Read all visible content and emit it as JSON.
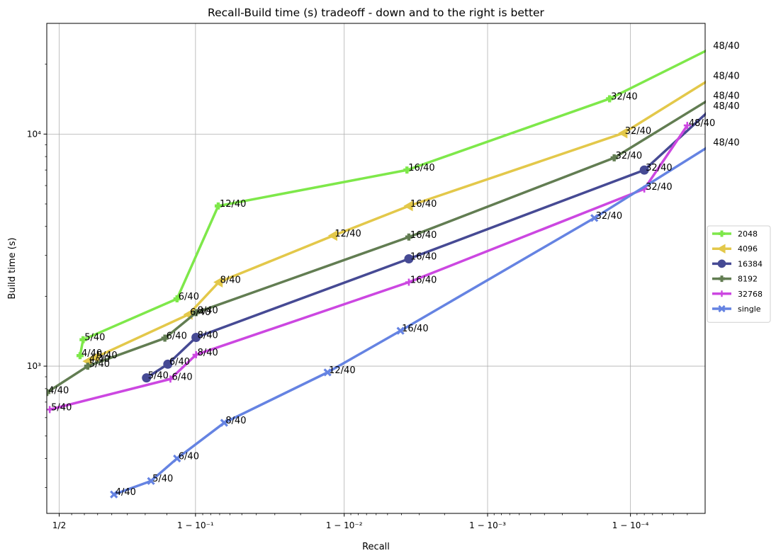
{
  "chart_data": {
    "type": "line",
    "title": "Recall-Build time (s) tradeoff - down and to the right is better",
    "xlabel": "Recall",
    "ylabel": "Build time (s)",
    "x_scale": "logit",
    "y_scale": "log",
    "xlim": [
      0.45,
      0.99997
    ],
    "ylim": [
      232,
      30000
    ],
    "grid": true,
    "legend_position": "center-right",
    "x_ticks": [
      {
        "value": 0.5,
        "label": "1/2"
      },
      {
        "value": 0.9,
        "label": "1 − 10⁻¹"
      },
      {
        "value": 0.99,
        "label": "1 − 10⁻²"
      },
      {
        "value": 0.999,
        "label": "1 − 10⁻³"
      },
      {
        "value": 0.9999,
        "label": "1 − 10⁻⁴"
      }
    ],
    "y_ticks": [
      {
        "value": 1000,
        "label": "10³"
      },
      {
        "value": 10000,
        "label": "10⁴"
      }
    ],
    "series": [
      {
        "name": "2048",
        "color": "#7ee84a",
        "marker": "plus-filled",
        "points": [
          {
            "x": 0.5832,
            "y": 1110,
            "label": "4/40"
          },
          {
            "x": 0.5951,
            "y": 1300,
            "label": "5/40"
          },
          {
            "x": 0.8698,
            "y": 1950,
            "label": "6/40"
          },
          {
            "x": 0.9285,
            "y": 4900,
            "label": "12/40"
          },
          {
            "x": 0.99634,
            "y": 7000,
            "label": "16/40"
          },
          {
            "x": 0.99986,
            "y": 14200,
            "label": "32/40"
          },
          {
            "x": 0.999973,
            "y": 23500,
            "label": "48/40"
          }
        ]
      },
      {
        "name": "4096",
        "color": "#e3c84a",
        "marker": "triangle-left",
        "points": [
          {
            "x": 0.613,
            "y": 1050,
            "label": "4/40"
          },
          {
            "x": 0.6414,
            "y": 1090,
            "label": "5/40"
          },
          {
            "x": 0.8895,
            "y": 1670,
            "label": "6/40"
          },
          {
            "x": 0.929,
            "y": 2300,
            "label": "8/40"
          },
          {
            "x": 0.9881,
            "y": 3650,
            "label": "12/40"
          },
          {
            "x": 0.99645,
            "y": 4900,
            "label": "16/40"
          },
          {
            "x": 0.999888,
            "y": 10100,
            "label": "32/40"
          },
          {
            "x": 0.999973,
            "y": 17400,
            "label": "48/40"
          }
        ]
      },
      {
        "name": "16384",
        "color": "#464a94",
        "marker": "circle",
        "points": [
          {
            "x": 0.8034,
            "y": 890,
            "label": "5/40"
          },
          {
            "x": 0.8521,
            "y": 1020,
            "label": "6/40"
          },
          {
            "x": 0.9008,
            "y": 1330,
            "label": "8/40"
          },
          {
            "x": 0.99645,
            "y": 2900,
            "label": "16/40"
          },
          {
            "x": 0.99992,
            "y": 7000,
            "label": "32/40"
          },
          {
            "x": 0.999973,
            "y": 12900,
            "label": "48/40"
          }
        ]
      },
      {
        "name": "8192",
        "color": "#627d52",
        "marker": "plus-filled",
        "points": [
          {
            "x": 0.4503,
            "y": 770,
            "label": "4/40"
          },
          {
            "x": 0.613,
            "y": 1000,
            "label": "5/40"
          },
          {
            "x": 0.846,
            "y": 1320,
            "label": "6/40"
          },
          {
            "x": 0.9008,
            "y": 1700,
            "label": "8/40"
          },
          {
            "x": 0.99645,
            "y": 3600,
            "label": "16/40"
          },
          {
            "x": 0.99987,
            "y": 7900,
            "label": "32/40"
          },
          {
            "x": 0.999973,
            "y": 14300,
            "label": "48/40"
          }
        ]
      },
      {
        "name": "32768",
        "color": "#cc47e1",
        "marker": "plus",
        "points": [
          {
            "x": 0.4618,
            "y": 650,
            "label": "5/40"
          },
          {
            "x": 0.8573,
            "y": 880,
            "label": "6/40"
          },
          {
            "x": 0.9008,
            "y": 1120,
            "label": "8/40"
          },
          {
            "x": 0.99645,
            "y": 2300,
            "label": "16/40"
          },
          {
            "x": 0.99992,
            "y": 5800,
            "label": "32/40"
          },
          {
            "x": 0.99996,
            "y": 10900,
            "label": "48/40"
          }
        ]
      },
      {
        "name": "single",
        "color": "#6583e2",
        "marker": "x",
        "points": [
          {
            "x": 0.7072,
            "y": 280,
            "label": "4/40"
          },
          {
            "x": 0.8146,
            "y": 320,
            "label": "5/40"
          },
          {
            "x": 0.8698,
            "y": 400,
            "label": "6/40"
          },
          {
            "x": 0.9346,
            "y": 570,
            "label": "8/40"
          },
          {
            "x": 0.98695,
            "y": 940,
            "label": "12/40"
          },
          {
            "x": 0.99594,
            "y": 1420,
            "label": "16/40"
          },
          {
            "x": 0.999821,
            "y": 4350,
            "label": "32/40"
          },
          {
            "x": 0.999973,
            "y": 9000,
            "label": "48/40"
          }
        ]
      }
    ]
  }
}
